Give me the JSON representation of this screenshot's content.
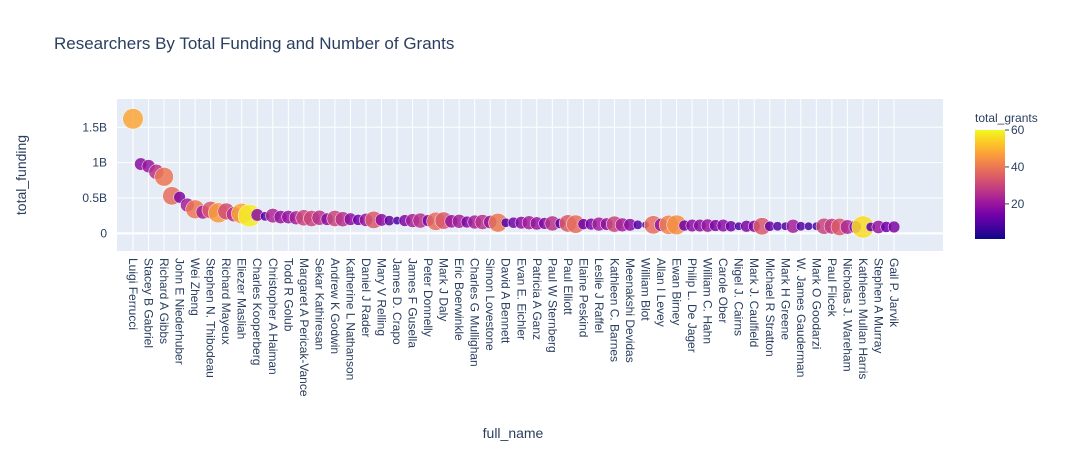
{
  "chart_data": {
    "type": "scatter",
    "title": "Researchers By Total Funding and Number of Grants",
    "xlabel": "full_name",
    "ylabel": "total_funding",
    "ylim": [
      -0.25,
      1.9
    ],
    "y_unit_scale": 1000000000,
    "yticks": [
      {
        "value": 0,
        "label": "0"
      },
      {
        "value": 0.5,
        "label": "0.5B"
      },
      {
        "value": 1,
        "label": "1B"
      },
      {
        "value": 1.5,
        "label": "1.5B"
      }
    ],
    "color_scale": {
      "title": "total_grants",
      "min": 1,
      "max": 60,
      "ticks": [
        20,
        40,
        60
      ],
      "colors": [
        "#0d0887",
        "#46039f",
        "#7201a8",
        "#9c179e",
        "#bd3786",
        "#d8576b",
        "#ed7953",
        "#fb9f3a",
        "#fdca26",
        "#f0f921"
      ]
    },
    "plot_bg": "#e5ecf6",
    "grid": true,
    "points": [
      {
        "name": "Luigi Ferrucci",
        "total_funding": 1.62,
        "total_grants": 48,
        "labeled": true
      },
      {
        "name": "",
        "total_funding": 0.98,
        "total_grants": 18,
        "labeled": false
      },
      {
        "name": "Stacey B Gabriel",
        "total_funding": 0.95,
        "total_grants": 20,
        "labeled": true
      },
      {
        "name": "",
        "total_funding": 0.87,
        "total_grants": 26,
        "labeled": false
      },
      {
        "name": "Richard A Gibbs",
        "total_funding": 0.8,
        "total_grants": 40,
        "labeled": true
      },
      {
        "name": "",
        "total_funding": 0.53,
        "total_grants": 38,
        "labeled": false
      },
      {
        "name": "John E Niederhuber",
        "total_funding": 0.51,
        "total_grants": 16,
        "labeled": true
      },
      {
        "name": "",
        "total_funding": 0.4,
        "total_grants": 22,
        "labeled": false
      },
      {
        "name": "Wei Zheng",
        "total_funding": 0.34,
        "total_grants": 40,
        "labeled": true
      },
      {
        "name": "",
        "total_funding": 0.3,
        "total_grants": 22,
        "labeled": false
      },
      {
        "name": "Stephen N. Thibodeau",
        "total_funding": 0.33,
        "total_grants": 34,
        "labeled": true
      },
      {
        "name": "",
        "total_funding": 0.29,
        "total_grants": 46,
        "labeled": false
      },
      {
        "name": "Richard Mayeux",
        "total_funding": 0.31,
        "total_grants": 32,
        "labeled": true
      },
      {
        "name": "",
        "total_funding": 0.27,
        "total_grants": 26,
        "labeled": false
      },
      {
        "name": "Eliezer Masliah",
        "total_funding": 0.28,
        "total_grants": 48,
        "labeled": true
      },
      {
        "name": "",
        "total_funding": 0.25,
        "total_grants": 58,
        "labeled": false
      },
      {
        "name": "Charles Kooperberg",
        "total_funding": 0.26,
        "total_grants": 18,
        "labeled": true
      },
      {
        "name": "",
        "total_funding": 0.24,
        "total_grants": 10,
        "labeled": false
      },
      {
        "name": "Christopher A Haiman",
        "total_funding": 0.25,
        "total_grants": 24,
        "labeled": true
      },
      {
        "name": "",
        "total_funding": 0.23,
        "total_grants": 20,
        "labeled": false
      },
      {
        "name": "Todd R Golub",
        "total_funding": 0.23,
        "total_grants": 20,
        "labeled": true
      },
      {
        "name": "",
        "total_funding": 0.22,
        "total_grants": 22,
        "labeled": false
      },
      {
        "name": "Margaret A Pericak-Vance",
        "total_funding": 0.22,
        "total_grants": 30,
        "labeled": true
      },
      {
        "name": "",
        "total_funding": 0.21,
        "total_grants": 30,
        "labeled": false
      },
      {
        "name": "Sekar Kathiresan",
        "total_funding": 0.22,
        "total_grants": 26,
        "labeled": true
      },
      {
        "name": "",
        "total_funding": 0.2,
        "total_grants": 18,
        "labeled": false
      },
      {
        "name": "Andrew K Godwin",
        "total_funding": 0.21,
        "total_grants": 30,
        "labeled": true
      },
      {
        "name": "",
        "total_funding": 0.2,
        "total_grants": 26,
        "labeled": false
      },
      {
        "name": "Katherine L Nathanson",
        "total_funding": 0.2,
        "total_grants": 18,
        "labeled": true
      },
      {
        "name": "",
        "total_funding": 0.19,
        "total_grants": 14,
        "labeled": false
      },
      {
        "name": "Daniel J Rader",
        "total_funding": 0.19,
        "total_grants": 20,
        "labeled": true
      },
      {
        "name": "",
        "total_funding": 0.19,
        "total_grants": 34,
        "labeled": false
      },
      {
        "name": "Mary V Relling",
        "total_funding": 0.19,
        "total_grants": 18,
        "labeled": true
      },
      {
        "name": "",
        "total_funding": 0.18,
        "total_grants": 12,
        "labeled": false
      },
      {
        "name": "James D. Crapo",
        "total_funding": 0.18,
        "total_grants": 8,
        "labeled": true
      },
      {
        "name": "",
        "total_funding": 0.18,
        "total_grants": 16,
        "labeled": false
      },
      {
        "name": "James F Gusella",
        "total_funding": 0.18,
        "total_grants": 22,
        "labeled": true
      },
      {
        "name": "",
        "total_funding": 0.18,
        "total_grants": 26,
        "labeled": false
      },
      {
        "name": "Peter Donnelly",
        "total_funding": 0.18,
        "total_grants": 16,
        "labeled": true
      },
      {
        "name": "",
        "total_funding": 0.17,
        "total_grants": 38,
        "labeled": false
      },
      {
        "name": "Mark J Daly",
        "total_funding": 0.18,
        "total_grants": 34,
        "labeled": true
      },
      {
        "name": "",
        "total_funding": 0.17,
        "total_grants": 20,
        "labeled": false
      },
      {
        "name": "Eric Boerwinkle",
        "total_funding": 0.17,
        "total_grants": 22,
        "labeled": true
      },
      {
        "name": "",
        "total_funding": 0.16,
        "total_grants": 16,
        "labeled": false
      },
      {
        "name": "Charles G Mullighan",
        "total_funding": 0.16,
        "total_grants": 22,
        "labeled": true
      },
      {
        "name": "",
        "total_funding": 0.16,
        "total_grants": 26,
        "labeled": false
      },
      {
        "name": "Simon Lovestone",
        "total_funding": 0.16,
        "total_grants": 20,
        "labeled": true
      },
      {
        "name": "",
        "total_funding": 0.15,
        "total_grants": 40,
        "labeled": false
      },
      {
        "name": "David A Bennett",
        "total_funding": 0.15,
        "total_grants": 10,
        "labeled": true
      },
      {
        "name": "",
        "total_funding": 0.15,
        "total_grants": 14,
        "labeled": false
      },
      {
        "name": "Evan E. Eichler",
        "total_funding": 0.15,
        "total_grants": 18,
        "labeled": true
      },
      {
        "name": "",
        "total_funding": 0.15,
        "total_grants": 22,
        "labeled": false
      },
      {
        "name": "Patricia A Ganz",
        "total_funding": 0.14,
        "total_grants": 20,
        "labeled": true
      },
      {
        "name": "",
        "total_funding": 0.14,
        "total_grants": 16,
        "labeled": false
      },
      {
        "name": "Paul W Sternberg",
        "total_funding": 0.14,
        "total_grants": 26,
        "labeled": true
      },
      {
        "name": "",
        "total_funding": 0.14,
        "total_grants": 12,
        "labeled": false
      },
      {
        "name": "Paul Elliott",
        "total_funding": 0.14,
        "total_grants": 34,
        "labeled": true
      },
      {
        "name": "",
        "total_funding": 0.13,
        "total_grants": 38,
        "labeled": false
      },
      {
        "name": "Elaine Peskind",
        "total_funding": 0.13,
        "total_grants": 14,
        "labeled": true
      },
      {
        "name": "",
        "total_funding": 0.13,
        "total_grants": 16,
        "labeled": false
      },
      {
        "name": "Leslie J Raffel",
        "total_funding": 0.13,
        "total_grants": 22,
        "labeled": true
      },
      {
        "name": "",
        "total_funding": 0.13,
        "total_grants": 18,
        "labeled": false
      },
      {
        "name": "Kathleen C. Barnes",
        "total_funding": 0.13,
        "total_grants": 30,
        "labeled": true
      },
      {
        "name": "",
        "total_funding": 0.12,
        "total_grants": 22,
        "labeled": false
      },
      {
        "name": "Meenakshi Devidas",
        "total_funding": 0.12,
        "total_grants": 18,
        "labeled": true
      },
      {
        "name": "",
        "total_funding": 0.12,
        "total_grants": 10,
        "labeled": false
      },
      {
        "name": "William Blot",
        "total_funding": 0.12,
        "total_grants": 6,
        "labeled": true
      },
      {
        "name": "",
        "total_funding": 0.12,
        "total_grants": 38,
        "labeled": false
      },
      {
        "name": "Allan I Levey",
        "total_funding": 0.12,
        "total_grants": 20,
        "labeled": true
      },
      {
        "name": "",
        "total_funding": 0.12,
        "total_grants": 42,
        "labeled": false
      },
      {
        "name": "Ewan Birney",
        "total_funding": 0.12,
        "total_grants": 44,
        "labeled": true
      },
      {
        "name": "",
        "total_funding": 0.11,
        "total_grants": 14,
        "labeled": false
      },
      {
        "name": "Philip L. De Jager",
        "total_funding": 0.11,
        "total_grants": 18,
        "labeled": true
      },
      {
        "name": "",
        "total_funding": 0.11,
        "total_grants": 18,
        "labeled": false
      },
      {
        "name": "William C. Hahn",
        "total_funding": 0.11,
        "total_grants": 20,
        "labeled": true
      },
      {
        "name": "",
        "total_funding": 0.11,
        "total_grants": 16,
        "labeled": false
      },
      {
        "name": "Carole Ober",
        "total_funding": 0.11,
        "total_grants": 18,
        "labeled": true
      },
      {
        "name": "",
        "total_funding": 0.1,
        "total_grants": 14,
        "labeled": false
      },
      {
        "name": "Nigel J. Cairns",
        "total_funding": 0.1,
        "total_grants": 8,
        "labeled": true
      },
      {
        "name": "",
        "total_funding": 0.1,
        "total_grants": 16,
        "labeled": false
      },
      {
        "name": "Mark J. Caulfield",
        "total_funding": 0.1,
        "total_grants": 16,
        "labeled": true
      },
      {
        "name": "",
        "total_funding": 0.1,
        "total_grants": 34,
        "labeled": false
      },
      {
        "name": "Michael R Stratton",
        "total_funding": 0.1,
        "total_grants": 12,
        "labeled": true
      },
      {
        "name": "",
        "total_funding": 0.1,
        "total_grants": 10,
        "labeled": false
      },
      {
        "name": "Mark H Greene",
        "total_funding": 0.1,
        "total_grants": 8,
        "labeled": true
      },
      {
        "name": "",
        "total_funding": 0.1,
        "total_grants": 22,
        "labeled": false
      },
      {
        "name": "W. James Gauderman",
        "total_funding": 0.1,
        "total_grants": 10,
        "labeled": true
      },
      {
        "name": "",
        "total_funding": 0.1,
        "total_grants": 8,
        "labeled": false
      },
      {
        "name": "Mark O Goodarzi",
        "total_funding": 0.1,
        "total_grants": 8,
        "labeled": true
      },
      {
        "name": "",
        "total_funding": 0.1,
        "total_grants": 30,
        "labeled": false
      },
      {
        "name": "Paul Flicek",
        "total_funding": 0.1,
        "total_grants": 28,
        "labeled": true
      },
      {
        "name": "",
        "total_funding": 0.09,
        "total_grants": 34,
        "labeled": false
      },
      {
        "name": "Nicholas J. Wareham",
        "total_funding": 0.09,
        "total_grants": 24,
        "labeled": true
      },
      {
        "name": "",
        "total_funding": 0.09,
        "total_grants": 18,
        "labeled": false
      },
      {
        "name": "Kathleen Mullan Harris",
        "total_funding": 0.09,
        "total_grants": 56,
        "labeled": true
      },
      {
        "name": "",
        "total_funding": 0.09,
        "total_grants": 10,
        "labeled": false
      },
      {
        "name": "Stephen A Murray",
        "total_funding": 0.09,
        "total_grants": 20,
        "labeled": true
      },
      {
        "name": "",
        "total_funding": 0.09,
        "total_grants": 14,
        "labeled": false
      },
      {
        "name": "Gail P. Jarvik",
        "total_funding": 0.09,
        "total_grants": 16,
        "labeled": true
      }
    ]
  }
}
